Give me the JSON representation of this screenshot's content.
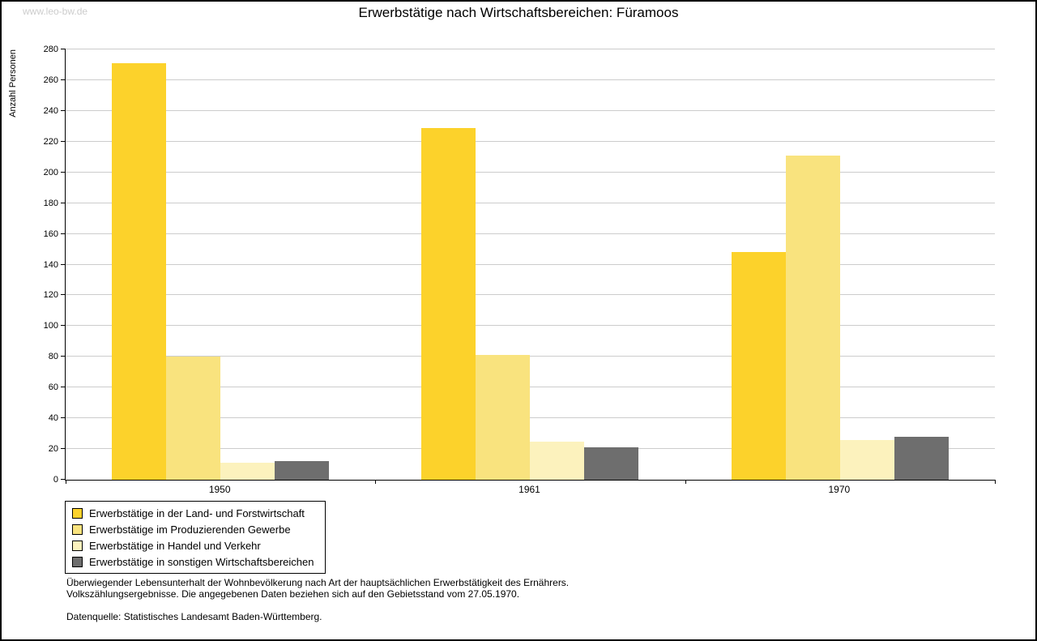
{
  "watermark": "www.leo-bw.de",
  "chart_data": {
    "type": "bar",
    "title": "Erwerbstätige nach Wirtschaftsbereichen: Füramoos",
    "xlabel": "",
    "ylabel": "Anzahl Personen",
    "categories": [
      "1950",
      "1961",
      "1970"
    ],
    "series": [
      {
        "name": "Erwerbstätige in der Land- und Forstwirtschaft",
        "color": "#FCD22B",
        "values": [
          271,
          229,
          148
        ]
      },
      {
        "name": "Erwerbstätige im Produzierenden Gewerbe",
        "color": "#F9E37E",
        "values": [
          80,
          81,
          211
        ]
      },
      {
        "name": "Erwerbstätige in Handel und Verkehr",
        "color": "#FCF2BD",
        "values": [
          11,
          25,
          26
        ]
      },
      {
        "name": "Erwerbstätige in sonstigen Wirtschaftsbereichen",
        "color": "#6E6E6E",
        "values": [
          12,
          21,
          28
        ]
      }
    ],
    "ylim": [
      0,
      280
    ],
    "ytick_step": 20,
    "grid": true,
    "gridline_color": "#cccccc",
    "legend_position": "bottom-left"
  },
  "footnotes": {
    "line1": "Überwiegender Lebensunterhalt der Wohnbevölkerung nach Art der hauptsächlichen Erwerbstätigkeit des Ernährers.",
    "line2": "Volkszählungsergebnisse. Die angegebenen Daten beziehen sich auf den Gebietsstand vom 27.05.1970.",
    "source": "Datenquelle: Statistisches Landesamt Baden-Württemberg."
  }
}
